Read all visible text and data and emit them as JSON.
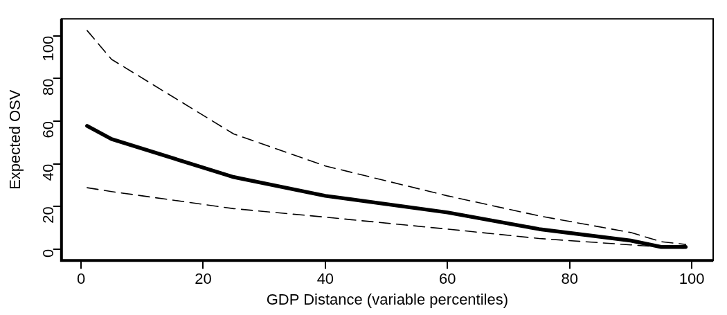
{
  "chart_data": {
    "type": "line",
    "xlabel": "GDP Distance (variable percentiles)",
    "ylabel": "Expected OSV",
    "xlim": [
      -3.2,
      103.5
    ],
    "ylim": [
      -5.3,
      108
    ],
    "xticks": [
      0,
      20,
      40,
      60,
      80,
      100
    ],
    "yticks": [
      0,
      20,
      40,
      60,
      80,
      100
    ],
    "grid": false,
    "legend": false,
    "marker": "none",
    "series": [
      {
        "color": "#000000",
        "line_style": "dashed",
        "x": [
          1,
          5,
          25,
          40,
          60,
          75,
          90,
          95,
          99
        ],
        "values": [
          102.5,
          89,
          54,
          39,
          25,
          15.6,
          7.8,
          3.5,
          2.2
        ]
      },
      {
        "color": "#000000",
        "line_style": "solid",
        "x": [
          1,
          5,
          25,
          40,
          60,
          75,
          90,
          95,
          99
        ],
        "values": [
          57.8,
          51.6,
          33.8,
          25,
          17.2,
          9.4,
          4,
          1,
          1
        ]
      },
      {
        "color": "#000000",
        "line_style": "dashed",
        "x": [
          1,
          5,
          25,
          40,
          60,
          75,
          90,
          95,
          99
        ],
        "values": [
          28.8,
          27,
          19,
          15,
          9.4,
          5,
          2,
          1,
          0.4
        ]
      }
    ]
  }
}
